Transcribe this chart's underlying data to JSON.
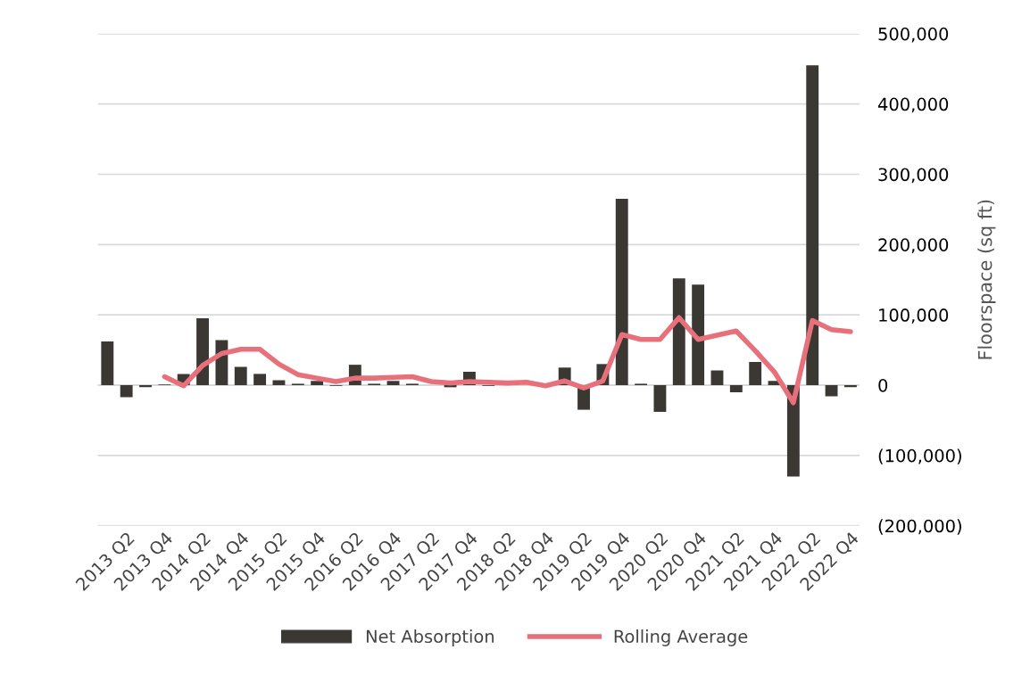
{
  "chart_data": {
    "type": "bar",
    "categories": [
      null,
      "2013 Q2",
      null,
      "2013 Q4",
      null,
      "2014 Q2",
      null,
      "2014 Q4",
      null,
      "2015 Q2",
      null,
      "2015 Q4",
      null,
      "2016 Q2",
      null,
      "2016 Q4",
      null,
      "2017 Q2",
      null,
      "2017 Q4",
      null,
      "2018 Q2",
      null,
      "2018 Q4",
      null,
      "2019 Q2",
      null,
      "2019 Q4",
      null,
      "2020 Q2",
      null,
      "2020 Q4",
      null,
      "2021 Q2",
      null,
      "2021 Q4",
      null,
      "2022 Q2",
      null,
      "2022 Q4"
    ],
    "series": [
      {
        "name": "Net Absorption",
        "color": "#3b3834",
        "values": [
          62000,
          -17000,
          -3000,
          1000,
          16000,
          95000,
          64000,
          26000,
          16000,
          7000,
          2000,
          6000,
          -1000,
          29000,
          2000,
          6000,
          2000,
          0,
          -3000,
          19000,
          -1000,
          0,
          0,
          0,
          25000,
          -35000,
          30000,
          265000,
          2000,
          -38000,
          152000,
          143000,
          21000,
          -10000,
          33000,
          6000,
          -130000,
          455000,
          -16000,
          -3000
        ]
      },
      {
        "name": "Rolling Average",
        "type": "line",
        "color": "#e8707a",
        "values": [
          null,
          null,
          null,
          12000,
          -1000,
          28000,
          45000,
          51000,
          51000,
          30000,
          15000,
          10000,
          5000,
          10000,
          10000,
          11000,
          12000,
          5000,
          3000,
          5000,
          4000,
          3000,
          4000,
          -1000,
          6000,
          -4000,
          6000,
          72000,
          65000,
          65000,
          96000,
          65000,
          71000,
          77000,
          49000,
          19000,
          -25000,
          92000,
          79000,
          76000
        ]
      }
    ],
    "ylabel": "Floorspace (sq ft)",
    "ylim": [
      -200000,
      500000
    ],
    "yticks": [
      {
        "value": -200000,
        "label": "(200,000)"
      },
      {
        "value": -100000,
        "label": "(100,000)"
      },
      {
        "value": 0,
        "label": "0"
      },
      {
        "value": 100000,
        "label": "100,000"
      },
      {
        "value": 200000,
        "label": "200,000"
      },
      {
        "value": 300000,
        "label": "300,000"
      },
      {
        "value": 400000,
        "label": "400,000"
      },
      {
        "value": 500000,
        "label": "500,000"
      }
    ],
    "grid": "y",
    "legend": "bottom"
  }
}
